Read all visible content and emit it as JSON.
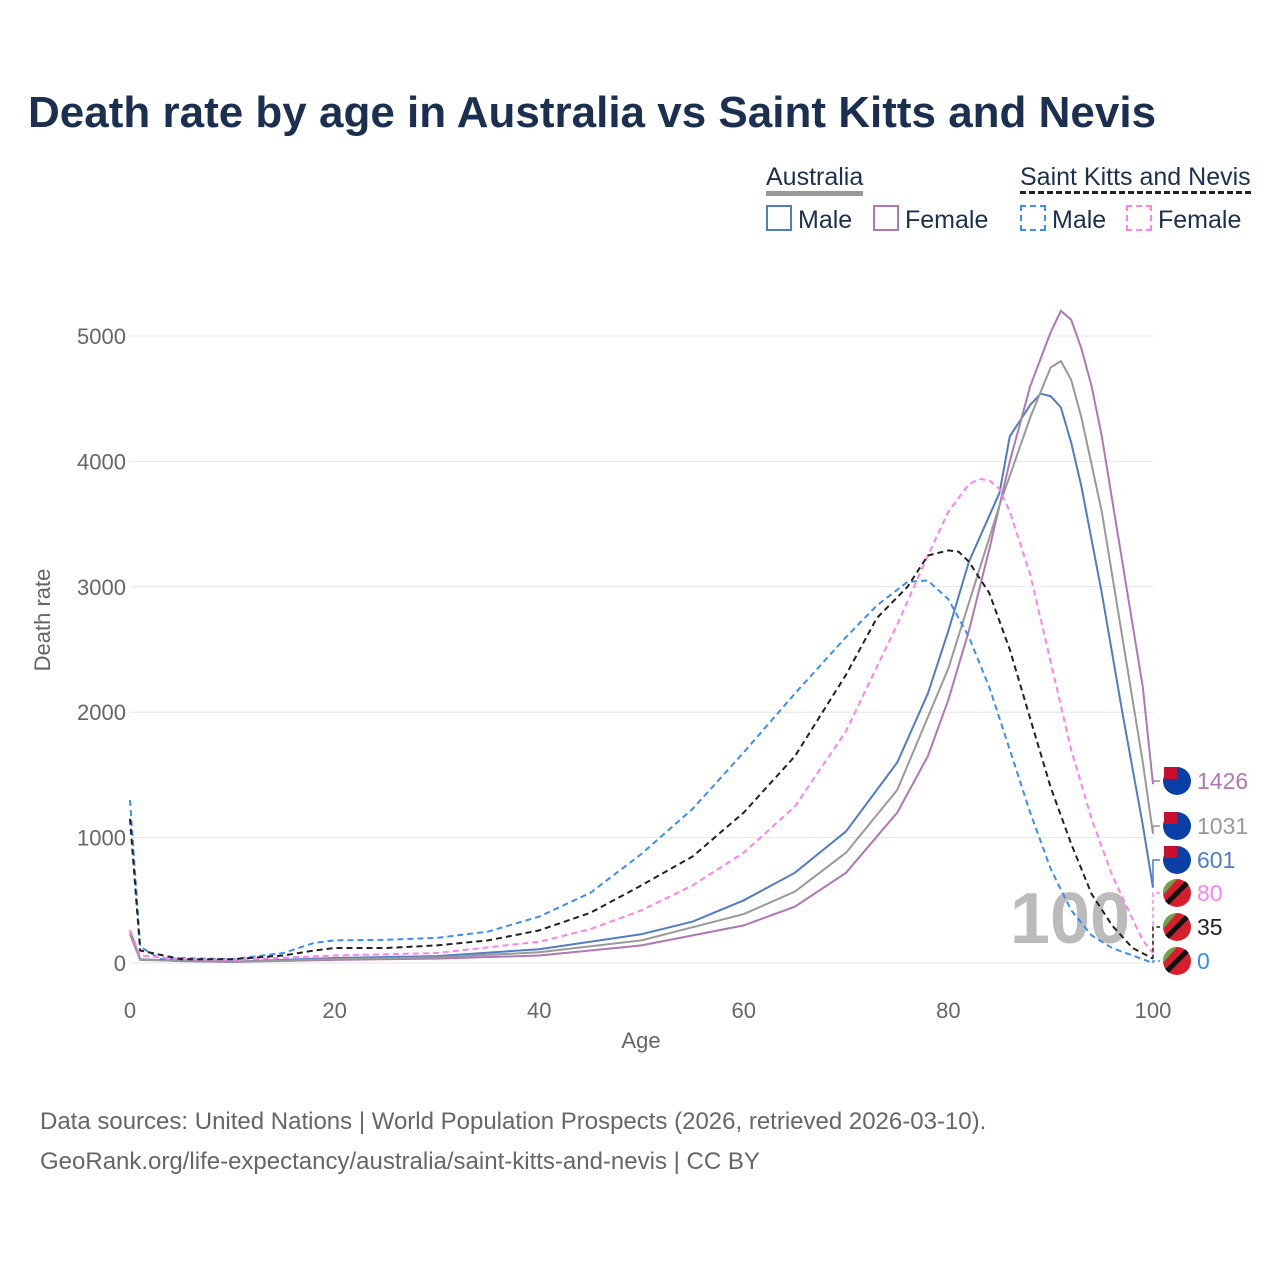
{
  "title": "Death rate by age in Australia vs Saint Kitts and Nevis",
  "legend": {
    "group1": "Australia",
    "group2": "Saint Kitts and Nevis",
    "male": "Male",
    "female": "Female"
  },
  "source_line1": "Data sources: United Nations | World Population Prospects (2026, retrieved 2026-03-10).",
  "source_line2": "GeoRank.org/life-expectancy/australia/saint-kitts-and-nevis | CC BY",
  "age_watermark": "100",
  "chart_data": {
    "type": "line",
    "title": "Death rate by age in Australia vs Saint Kitts and Nevis",
    "xlabel": "Age",
    "ylabel": "Death rate",
    "xlim": [
      0,
      100
    ],
    "ylim": [
      0,
      5000
    ],
    "xticks": [
      "0",
      "20",
      "40",
      "60",
      "80",
      "100"
    ],
    "yticks": [
      "0",
      "1000",
      "2000",
      "3000",
      "4000",
      "5000"
    ],
    "grid": true,
    "series": [
      {
        "name": "Australia Male",
        "color": "#4f7cc7",
        "dash": false,
        "end_label": "601",
        "points": [
          [
            0,
            260
          ],
          [
            1,
            30
          ],
          [
            5,
            15
          ],
          [
            10,
            10
          ],
          [
            20,
            40
          ],
          [
            30,
            55
          ],
          [
            40,
            110
          ],
          [
            50,
            230
          ],
          [
            55,
            330
          ],
          [
            60,
            500
          ],
          [
            65,
            720
          ],
          [
            70,
            1050
          ],
          [
            75,
            1600
          ],
          [
            78,
            2150
          ],
          [
            80,
            2650
          ],
          [
            82,
            3200
          ],
          [
            85,
            3750
          ],
          [
            86,
            4200
          ],
          [
            88,
            4450
          ],
          [
            89,
            4540
          ],
          [
            90,
            4520
          ],
          [
            91,
            4430
          ],
          [
            92,
            4150
          ],
          [
            93,
            3800
          ],
          [
            95,
            2950
          ],
          [
            97,
            2000
          ],
          [
            99,
            1100
          ],
          [
            100,
            601
          ]
        ]
      },
      {
        "name": "Australia Female",
        "color": "#b077b5",
        "dash": false,
        "end_label": "1426",
        "points": [
          [
            0,
            230
          ],
          [
            1,
            25
          ],
          [
            10,
            8
          ],
          [
            20,
            25
          ],
          [
            30,
            35
          ],
          [
            40,
            60
          ],
          [
            50,
            140
          ],
          [
            60,
            300
          ],
          [
            65,
            450
          ],
          [
            70,
            720
          ],
          [
            75,
            1200
          ],
          [
            78,
            1650
          ],
          [
            80,
            2100
          ],
          [
            82,
            2650
          ],
          [
            84,
            3300
          ],
          [
            86,
            4000
          ],
          [
            88,
            4600
          ],
          [
            90,
            5030
          ],
          [
            91,
            5200
          ],
          [
            92,
            5130
          ],
          [
            93,
            4900
          ],
          [
            94,
            4600
          ],
          [
            95,
            4200
          ],
          [
            97,
            3200
          ],
          [
            99,
            2200
          ],
          [
            100,
            1426
          ]
        ]
      },
      {
        "name": "Australia",
        "color": "#999999",
        "dash": false,
        "end_label": "1031",
        "points": [
          [
            0,
            245
          ],
          [
            1,
            28
          ],
          [
            10,
            9
          ],
          [
            20,
            32
          ],
          [
            30,
            45
          ],
          [
            40,
            85
          ],
          [
            50,
            180
          ],
          [
            60,
            390
          ],
          [
            65,
            570
          ],
          [
            70,
            880
          ],
          [
            75,
            1380
          ],
          [
            80,
            2350
          ],
          [
            85,
            3650
          ],
          [
            88,
            4350
          ],
          [
            90,
            4750
          ],
          [
            91,
            4800
          ],
          [
            92,
            4650
          ],
          [
            93,
            4350
          ],
          [
            95,
            3600
          ],
          [
            97,
            2600
          ],
          [
            99,
            1600
          ],
          [
            100,
            1031
          ]
        ]
      },
      {
        "name": "Saint Kitts and Nevis Male",
        "color": "#3a8ef5",
        "dash": true,
        "end_label": "0",
        "points": [
          [
            0,
            1300
          ],
          [
            1,
            130
          ],
          [
            3,
            30
          ],
          [
            5,
            40
          ],
          [
            10,
            30
          ],
          [
            15,
            80
          ],
          [
            18,
            160
          ],
          [
            20,
            180
          ],
          [
            25,
            185
          ],
          [
            30,
            200
          ],
          [
            35,
            250
          ],
          [
            40,
            370
          ],
          [
            45,
            560
          ],
          [
            50,
            870
          ],
          [
            55,
            1230
          ],
          [
            60,
            1680
          ],
          [
            65,
            2150
          ],
          [
            70,
            2600
          ],
          [
            73,
            2850
          ],
          [
            76,
            3040
          ],
          [
            78,
            3050
          ],
          [
            80,
            2900
          ],
          [
            82,
            2600
          ],
          [
            84,
            2200
          ],
          [
            86,
            1700
          ],
          [
            88,
            1200
          ],
          [
            90,
            750
          ],
          [
            92,
            420
          ],
          [
            94,
            220
          ],
          [
            96,
            120
          ],
          [
            98,
            60
          ],
          [
            100,
            0
          ]
        ]
      },
      {
        "name": "Saint Kitts and Nevis Female",
        "color": "#ff80f0",
        "dash": true,
        "end_label": "80",
        "points": [
          [
            0,
            260
          ],
          [
            1,
            60
          ],
          [
            5,
            30
          ],
          [
            10,
            25
          ],
          [
            20,
            60
          ],
          [
            30,
            80
          ],
          [
            40,
            170
          ],
          [
            45,
            270
          ],
          [
            50,
            420
          ],
          [
            55,
            620
          ],
          [
            60,
            880
          ],
          [
            65,
            1250
          ],
          [
            70,
            1850
          ],
          [
            75,
            2700
          ],
          [
            78,
            3250
          ],
          [
            80,
            3600
          ],
          [
            82,
            3820
          ],
          [
            83,
            3860
          ],
          [
            84,
            3850
          ],
          [
            85,
            3780
          ],
          [
            86,
            3600
          ],
          [
            88,
            3100
          ],
          [
            90,
            2400
          ],
          [
            92,
            1700
          ],
          [
            94,
            1150
          ],
          [
            96,
            700
          ],
          [
            98,
            350
          ],
          [
            99,
            180
          ],
          [
            100,
            80
          ]
        ]
      },
      {
        "name": "Saint Kitts and Nevis",
        "color": "#222222",
        "dash": true,
        "end_label": "35",
        "points": [
          [
            0,
            1150
          ],
          [
            1,
            100
          ],
          [
            5,
            30
          ],
          [
            10,
            30
          ],
          [
            15,
            60
          ],
          [
            18,
            100
          ],
          [
            20,
            120
          ],
          [
            25,
            120
          ],
          [
            30,
            140
          ],
          [
            35,
            180
          ],
          [
            40,
            260
          ],
          [
            45,
            400
          ],
          [
            50,
            620
          ],
          [
            55,
            850
          ],
          [
            60,
            1200
          ],
          [
            65,
            1650
          ],
          [
            70,
            2300
          ],
          [
            73,
            2750
          ],
          [
            76,
            3000
          ],
          [
            78,
            3250
          ],
          [
            80,
            3290
          ],
          [
            81,
            3280
          ],
          [
            82,
            3200
          ],
          [
            84,
            2950
          ],
          [
            86,
            2500
          ],
          [
            88,
            1950
          ],
          [
            90,
            1400
          ],
          [
            92,
            950
          ],
          [
            94,
            550
          ],
          [
            96,
            300
          ],
          [
            98,
            120
          ],
          [
            100,
            35
          ]
        ]
      }
    ]
  }
}
